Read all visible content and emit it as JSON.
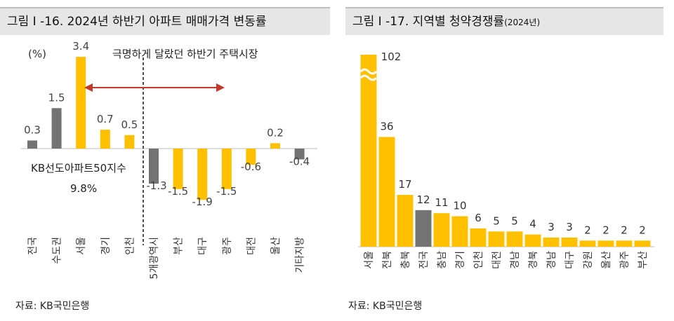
{
  "left_panel": {
    "title": "그림 I -16. 2024년 하반기 아파트 매매가격 변동률",
    "source": "자료: KB국민은행"
  },
  "right_panel": {
    "title_main": "그림 I -17. 지역별 청약경쟁률",
    "title_suffix": "(2024년)",
    "source": "자료: KB국민은행"
  },
  "colors": {
    "yellow": "#FFC000",
    "gray": "#737373",
    "red": "#C0392B"
  },
  "chart_data": [
    {
      "type": "bar",
      "title": "2024년 하반기 아파트 매매가격 변동률",
      "ylabel": "(%)",
      "ylim": [
        -2.5,
        3.6
      ],
      "categories": [
        "전국",
        "수도권",
        "서울",
        "경기",
        "인천",
        "5개광역시",
        "부산",
        "대구",
        "광주",
        "대전",
        "울산",
        "기타지방"
      ],
      "values": [
        0.3,
        1.5,
        3.4,
        0.7,
        0.5,
        -1.3,
        -1.5,
        -1.9,
        -1.5,
        -0.6,
        0.2,
        -0.4
      ],
      "value_labels": [
        "0.3",
        "1.5",
        "3.4",
        "0.7",
        "0.5",
        "-1.3",
        "-1.5",
        "-1.9",
        "-1.5",
        "-0.6",
        "0.2",
        "-0.4"
      ],
      "highlight": [
        0,
        1,
        5,
        11
      ],
      "annotations": {
        "arrow_text": "극명하게 달랐던 하반기 주택시장",
        "index_label": "KB선도아파트50지수",
        "index_value": "9.8%"
      }
    },
    {
      "type": "bar",
      "title": "지역별 청약경쟁률 (2024년)",
      "categories": [
        "서울",
        "전북",
        "충북",
        "전국",
        "충남",
        "경기",
        "인천",
        "대전",
        "경남",
        "경북",
        "경남",
        "대구",
        "강원",
        "울산",
        "광주",
        "부산"
      ],
      "values": [
        102,
        36,
        17,
        12,
        11,
        10,
        6,
        5,
        5,
        4,
        3,
        3,
        2,
        2,
        2,
        2
      ],
      "value_labels": [
        "102",
        "36",
        "17",
        "12",
        "11",
        "10",
        "6",
        "5",
        "5",
        "4",
        "3",
        "3",
        "2",
        "2",
        "2",
        "2"
      ],
      "highlight": [
        3
      ],
      "axis_break": true
    }
  ]
}
